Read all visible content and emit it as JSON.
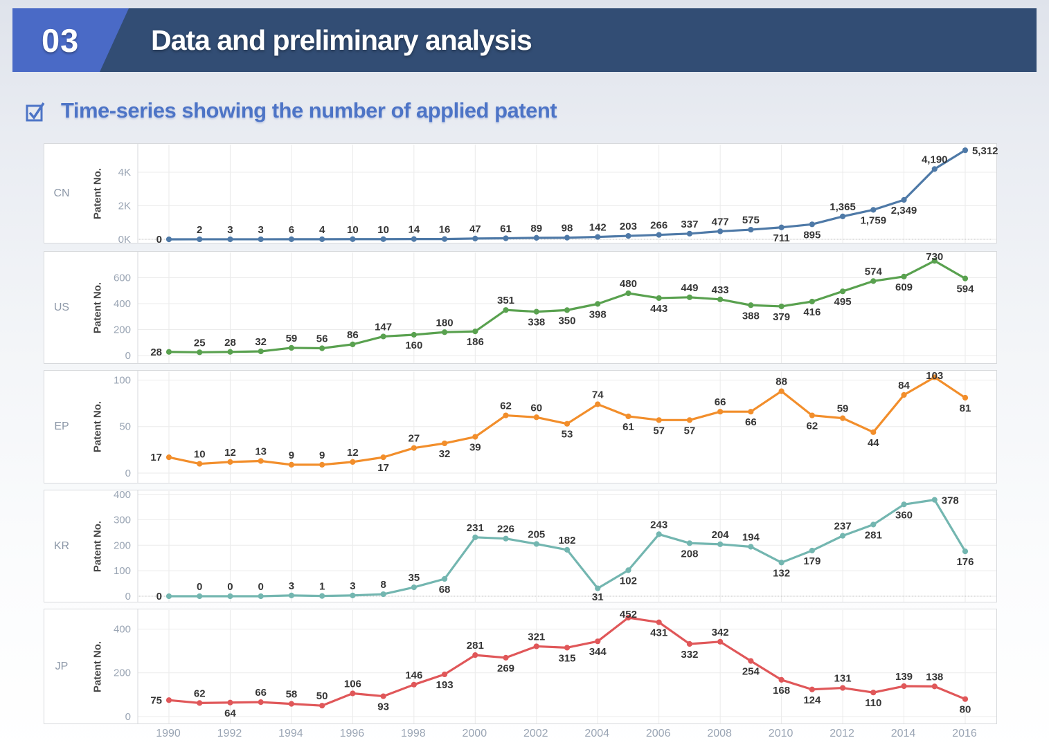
{
  "header": {
    "number": "03",
    "title": "Data and preliminary analysis",
    "bar_color": "#324d74",
    "chip_color": "#4a6ac6"
  },
  "subtitle": {
    "text": "Time-series showing the number of applied patent",
    "accent_color": "#4d74c6",
    "checkbox_icon": "checked-box"
  },
  "chart_data": {
    "type": "line",
    "title": "Time-series of applied patents by patent office",
    "x": [
      1990,
      1991,
      1992,
      1993,
      1994,
      1995,
      1996,
      1997,
      1998,
      1999,
      2000,
      2001,
      2002,
      2003,
      2004,
      2005,
      2006,
      2007,
      2008,
      2009,
      2010,
      2011,
      2012,
      2013,
      2014,
      2015,
      2016
    ],
    "x_tick_labels": [
      "1990",
      "1992",
      "1994",
      "1996",
      "1998",
      "2000",
      "2002",
      "2004",
      "2006",
      "2008",
      "2010",
      "2012",
      "2014",
      "2016"
    ],
    "ylabel": "Patent No.",
    "grid": true,
    "legend_position": "row-labels-left",
    "panels": [
      {
        "name": "CN",
        "color": "#4e79a7",
        "values": [
          0,
          2,
          3,
          3,
          6,
          4,
          10,
          10,
          14,
          16,
          47,
          61,
          89,
          98,
          142,
          203,
          266,
          337,
          477,
          575,
          711,
          895,
          1365,
          1759,
          2349,
          4190,
          5312
        ],
        "label_sides": [
          "l",
          "a",
          "a",
          "a",
          "a",
          "a",
          "a",
          "a",
          "a",
          "a",
          "a",
          "a",
          "a",
          "a",
          "a",
          "a",
          "a",
          "a",
          "a",
          "a",
          "b",
          "b",
          "a",
          "b",
          "b",
          "a",
          "r"
        ],
        "ylim": [
          0,
          5690
        ],
        "yticks": [
          {
            "v": 0,
            "label": "0K"
          },
          {
            "v": 2000,
            "label": "2K"
          },
          {
            "v": 4000,
            "label": "4K"
          }
        ],
        "zero_dotted": true
      },
      {
        "name": "US",
        "color": "#59a14f",
        "values": [
          28,
          25,
          28,
          32,
          59,
          56,
          86,
          147,
          160,
          180,
          186,
          351,
          338,
          350,
          398,
          480,
          443,
          449,
          433,
          388,
          379,
          416,
          495,
          574,
          609,
          730,
          594
        ],
        "label_sides": [
          "l",
          "a",
          "a",
          "a",
          "a",
          "a",
          "a",
          "a",
          "b",
          "a",
          "b",
          "a",
          "b",
          "b",
          "b",
          "a",
          "b",
          "a",
          "a",
          "b",
          "b",
          "b",
          "b",
          "a",
          "b",
          "a",
          "b"
        ],
        "ylim": [
          0,
          800
        ],
        "yticks": [
          {
            "v": 0,
            "label": "0"
          },
          {
            "v": 200,
            "label": "200"
          },
          {
            "v": 400,
            "label": "400"
          },
          {
            "v": 600,
            "label": "600"
          }
        ],
        "zero_dotted": false
      },
      {
        "name": "EP",
        "color": "#f28e2b",
        "values": [
          17,
          10,
          12,
          13,
          9,
          9,
          12,
          17,
          27,
          32,
          39,
          62,
          60,
          53,
          74,
          61,
          57,
          57,
          66,
          66,
          88,
          62,
          59,
          44,
          84,
          103,
          81
        ],
        "label_sides": [
          "l",
          "a",
          "a",
          "a",
          "a",
          "a",
          "a",
          "b",
          "a",
          "b",
          "b",
          "a",
          "a",
          "b",
          "a",
          "b",
          "b",
          "b",
          "a",
          "b",
          "a",
          "b",
          "a",
          "b",
          "a",
          "a",
          "b"
        ],
        "ylim": [
          0,
          110
        ],
        "yticks": [
          {
            "v": 0,
            "label": "0"
          },
          {
            "v": 50,
            "label": "50"
          },
          {
            "v": 100,
            "label": "100"
          }
        ],
        "zero_dotted": false
      },
      {
        "name": "KR",
        "color": "#73b6b0",
        "values": [
          0,
          0,
          0,
          0,
          3,
          1,
          3,
          8,
          35,
          68,
          231,
          226,
          205,
          182,
          31,
          102,
          243,
          208,
          204,
          194,
          132,
          179,
          237,
          281,
          360,
          378,
          176
        ],
        "label_sides": [
          "l",
          "a",
          "a",
          "a",
          "a",
          "a",
          "a",
          "a",
          "a",
          "b",
          "a",
          "a",
          "a",
          "a",
          "b",
          "b",
          "a",
          "b",
          "a",
          "a",
          "b",
          "b",
          "a",
          "b",
          "b",
          "r",
          "b"
        ],
        "ylim": [
          0,
          415
        ],
        "yticks": [
          {
            "v": 0,
            "label": "0"
          },
          {
            "v": 100,
            "label": "100"
          },
          {
            "v": 200,
            "label": "200"
          },
          {
            "v": 300,
            "label": "300"
          },
          {
            "v": 400,
            "label": "400"
          }
        ],
        "zero_dotted": true
      },
      {
        "name": "JP",
        "color": "#e05759",
        "values": [
          75,
          62,
          64,
          66,
          58,
          50,
          106,
          93,
          146,
          193,
          281,
          269,
          321,
          315,
          344,
          452,
          431,
          332,
          342,
          254,
          168,
          124,
          131,
          110,
          139,
          138,
          80
        ],
        "label_sides": [
          "l",
          "a",
          "b",
          "a",
          "a",
          "a",
          "a",
          "b",
          "a",
          "b",
          "a",
          "b",
          "a",
          "b",
          "b",
          "a",
          "b",
          "b",
          "a",
          "b",
          "b",
          "b",
          "a",
          "b",
          "a",
          "a",
          "b"
        ],
        "ylim": [
          0,
          490
        ],
        "yticks": [
          {
            "v": 0,
            "label": "0"
          },
          {
            "v": 200,
            "label": "200"
          },
          {
            "v": 400,
            "label": "400"
          }
        ],
        "zero_dotted": false
      }
    ]
  }
}
